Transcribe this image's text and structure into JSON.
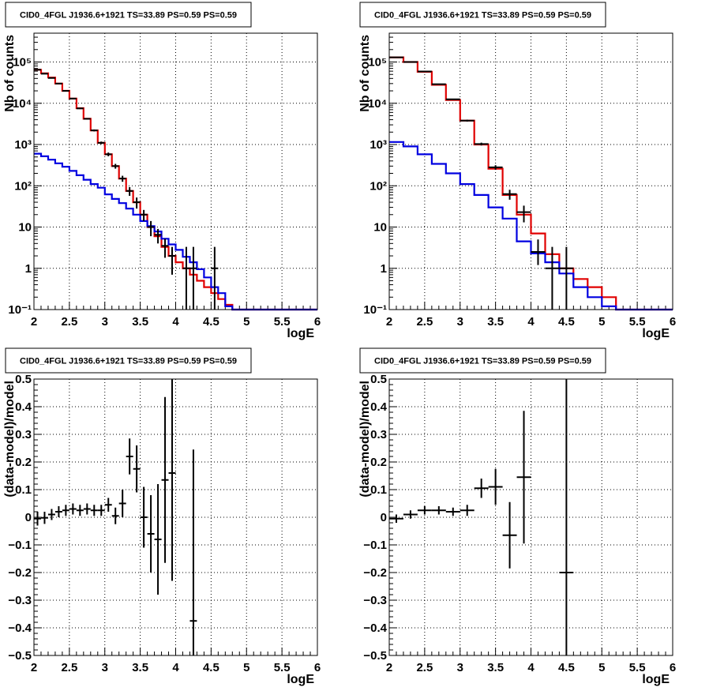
{
  "chart_data": [
    {
      "type": "line",
      "title": "CID0_4FGL J1936.6+1921 TS=33.89 PS=0.59 PS=0.59",
      "xlabel": "logE",
      "ylabel": "Nb of counts",
      "xlim": [
        2,
        6
      ],
      "ylim": [
        0.1,
        500000
      ],
      "log_y": true,
      "grid": true,
      "xticks": [
        2,
        2.5,
        3,
        3.5,
        4,
        4.5,
        5,
        5.5,
        6
      ],
      "xtick_labels": [
        "2",
        "2.5",
        "3",
        "3.5",
        "4",
        "4.5",
        "5",
        "5.5",
        "6"
      ],
      "yticks": [
        0.1,
        1,
        10,
        100,
        1000,
        10000,
        100000
      ],
      "ytick_labels": [
        "10⁻¹",
        "1",
        "10",
        "10²",
        "10³",
        "10⁴",
        "10⁵"
      ],
      "bin_edges": [
        2.0,
        2.1,
        2.2,
        2.3,
        2.4,
        2.5,
        2.6,
        2.7,
        2.8,
        2.9,
        3.0,
        3.1,
        3.2,
        3.3,
        3.4,
        3.5,
        3.6,
        3.7,
        3.8,
        3.9,
        4.0,
        4.1,
        4.2,
        4.3,
        4.4,
        4.5,
        4.6,
        4.7,
        4.8,
        4.9,
        5.0,
        5.1,
        5.2,
        5.3,
        5.4,
        5.5,
        5.6,
        5.7,
        5.8,
        5.9,
        6.0
      ],
      "series": [
        {
          "style": "step",
          "color": "#e00000",
          "values": [
            65000,
            53000,
            42000,
            30000,
            20000,
            13000,
            7600,
            4200,
            2200,
            1100,
            580,
            300,
            150,
            75,
            40,
            20,
            10,
            6,
            3.3,
            2.0,
            1.4,
            1.0,
            0.7,
            0.5,
            0.35,
            0.25,
            0.18,
            0.13,
            0.1,
            0.1,
            0.1,
            0.1,
            0.1,
            0.1,
            0.1,
            0.1,
            0.1,
            0.1,
            0.1,
            0.1
          ]
        },
        {
          "style": "step",
          "color": "#0000e0",
          "values": [
            600,
            520,
            430,
            350,
            290,
            230,
            180,
            140,
            110,
            90,
            62,
            48,
            38,
            28,
            20,
            14,
            10.5,
            7.8,
            5.2,
            3.8,
            2.8,
            1.9,
            1.4,
            0.95,
            0.6,
            0.35,
            0.25,
            0.12,
            0.1,
            0.1,
            0.1,
            0.1,
            0.1,
            0.1,
            0.1,
            0.1,
            0.1,
            0.1,
            0.1,
            0.1
          ]
        },
        {
          "style": "points",
          "color": "#000000",
          "x": [
            2.05,
            2.15,
            2.25,
            2.35,
            2.45,
            2.55,
            2.65,
            2.75,
            2.85,
            2.95,
            3.05,
            3.15,
            3.25,
            3.35,
            3.45,
            3.55,
            3.65,
            3.75,
            3.85,
            3.95,
            4.15,
            4.25,
            4.55
          ],
          "y": [
            65000,
            52000,
            41000,
            30000,
            20000,
            13000,
            7500,
            4200,
            2200,
            1100,
            580,
            300,
            150,
            75,
            40,
            20,
            10,
            6.5,
            3.5,
            2.0,
            1.0,
            1.0,
            1.0
          ],
          "yerr_low": [
            800,
            700,
            600,
            500,
            400,
            300,
            250,
            180,
            120,
            80,
            60,
            40,
            25,
            18,
            12,
            6,
            4,
            2.5,
            1.7,
            1.3,
            0.9,
            0.9,
            0.9
          ],
          "yerr_high": [
            800,
            700,
            600,
            500,
            400,
            300,
            250,
            180,
            120,
            80,
            60,
            40,
            25,
            18,
            12,
            6,
            4,
            2.5,
            1.7,
            1.3,
            2.3,
            2.3,
            2.3
          ]
        }
      ]
    },
    {
      "type": "line",
      "title": "CID0_4FGL J1936.6+1921 TS=33.89 PS=0.59 PS=0.59",
      "xlabel": "logE",
      "ylabel": "Nb of counts",
      "xlim": [
        2,
        6
      ],
      "ylim": [
        0.1,
        500000
      ],
      "log_y": true,
      "grid": true,
      "xticks": [
        2,
        2.5,
        3,
        3.5,
        4,
        4.5,
        5,
        5.5,
        6
      ],
      "xtick_labels": [
        "2",
        "2.5",
        "3",
        "3.5",
        "4",
        "4.5",
        "5",
        "5.5",
        "6"
      ],
      "yticks": [
        0.1,
        1,
        10,
        100,
        1000,
        10000,
        100000
      ],
      "ytick_labels": [
        "10⁻¹",
        "1",
        "10",
        "10²",
        "10³",
        "10⁴",
        "10⁵"
      ],
      "bin_edges": [
        2.0,
        2.2,
        2.4,
        2.6,
        2.8,
        3.0,
        3.2,
        3.4,
        3.6,
        3.8,
        4.0,
        4.2,
        4.4,
        4.6,
        4.8,
        5.0,
        5.2,
        5.4,
        5.6,
        5.8,
        6.0
      ],
      "series": [
        {
          "style": "step",
          "color": "#e00000",
          "values": [
            130000,
            100000,
            58000,
            28000,
            12000,
            3800,
            1000,
            260,
            60,
            20,
            7,
            2.2,
            1.0,
            0.55,
            0.35,
            0.2,
            0.1,
            0.1,
            0.1,
            0.1
          ]
        },
        {
          "style": "step",
          "color": "#0000e0",
          "values": [
            1150,
            900,
            580,
            340,
            200,
            110,
            60,
            30,
            16,
            4.5,
            2.3,
            1.4,
            0.75,
            0.35,
            0.2,
            0.12,
            0.1,
            0.1,
            0.1,
            0.1
          ]
        },
        {
          "style": "points",
          "color": "#000000",
          "x": [
            2.1,
            2.3,
            2.5,
            2.7,
            2.9,
            3.1,
            3.3,
            3.5,
            3.7,
            3.9,
            4.1,
            4.3,
            4.5
          ],
          "y": [
            130000,
            100000,
            59000,
            29000,
            12500,
            3800,
            1030,
            280,
            63,
            23,
            2.5,
            1.0,
            1.0
          ],
          "yerr_low": [
            1000,
            900,
            700,
            500,
            300,
            200,
            80,
            35,
            17,
            10,
            1.3,
            0.9,
            0.9
          ],
          "yerr_high": [
            1000,
            900,
            700,
            500,
            300,
            200,
            80,
            35,
            17,
            10,
            2.5,
            2.3,
            2.3
          ]
        }
      ]
    },
    {
      "type": "scatter",
      "title": "CID0_4FGL J1936.6+1921 TS=33.89 PS=0.59 PS=0.59",
      "xlabel": "logE",
      "ylabel": "(data-model)/model",
      "xlim": [
        2,
        6
      ],
      "ylim": [
        -0.5,
        0.5
      ],
      "grid": true,
      "xticks": [
        2,
        2.5,
        3,
        3.5,
        4,
        4.5,
        5,
        5.5,
        6
      ],
      "xtick_labels": [
        "2",
        "2.5",
        "3",
        "3.5",
        "4",
        "4.5",
        "5",
        "5.5",
        "6"
      ],
      "yticks": [
        -0.5,
        -0.4,
        -0.3,
        -0.2,
        -0.1,
        0,
        0.1,
        0.2,
        0.3,
        0.4,
        0.5
      ],
      "ytick_labels": [
        "−0.5",
        "−0.4",
        "−0.3",
        "−0.2",
        "−0.1",
        "0",
        "0.1",
        "0.2",
        "0.3",
        "0.4",
        "0.5"
      ],
      "series": [
        {
          "style": "points",
          "color": "#000000",
          "xerr": 0.05,
          "x": [
            2.05,
            2.15,
            2.25,
            2.35,
            2.45,
            2.55,
            2.65,
            2.75,
            2.85,
            2.95,
            3.05,
            3.15,
            3.25,
            3.35,
            3.45,
            3.55,
            3.65,
            3.75,
            3.85,
            3.95,
            4.25
          ],
          "y": [
            -0.005,
            -0.002,
            0.01,
            0.02,
            0.025,
            0.03,
            0.025,
            0.03,
            0.025,
            0.025,
            0.045,
            0.005,
            0.05,
            0.22,
            0.175,
            0.0,
            -0.06,
            -0.08,
            0.135,
            0.16,
            -0.375
          ],
          "yerr": [
            0.025,
            0.022,
            0.02,
            0.02,
            0.02,
            0.02,
            0.02,
            0.02,
            0.02,
            0.02,
            0.025,
            0.03,
            0.05,
            0.065,
            0.085,
            0.11,
            0.14,
            0.2,
            0.3,
            0.39,
            0.62
          ]
        }
      ]
    },
    {
      "type": "scatter",
      "title": "CID0_4FGL J1936.6+1921 TS=33.89 PS=0.59 PS=0.59",
      "xlabel": "logE",
      "ylabel": "(data-model)/model",
      "xlim": [
        2,
        6
      ],
      "ylim": [
        -0.5,
        0.5
      ],
      "grid": true,
      "xticks": [
        2,
        2.5,
        3,
        3.5,
        4,
        4.5,
        5,
        5.5,
        6
      ],
      "xtick_labels": [
        "2",
        "2.5",
        "3",
        "3.5",
        "4",
        "4.5",
        "5",
        "5.5",
        "6"
      ],
      "yticks": [
        -0.5,
        -0.4,
        -0.3,
        -0.2,
        -0.1,
        0,
        0.1,
        0.2,
        0.3,
        0.4,
        0.5
      ],
      "ytick_labels": [
        "−0.5",
        "−0.4",
        "−0.3",
        "−0.2",
        "−0.1",
        "0",
        "0.1",
        "0.2",
        "0.3",
        "0.4",
        "0.5"
      ],
      "series": [
        {
          "style": "points",
          "color": "#000000",
          "xerr": 0.1,
          "x": [
            2.1,
            2.3,
            2.5,
            2.7,
            2.9,
            3.1,
            3.3,
            3.5,
            3.7,
            3.9,
            4.5
          ],
          "y": [
            -0.005,
            0.01,
            0.025,
            0.025,
            0.02,
            0.025,
            0.105,
            0.11,
            -0.065,
            0.145,
            -0.2
          ],
          "yerr": [
            0.015,
            0.015,
            0.015,
            0.015,
            0.015,
            0.02,
            0.035,
            0.065,
            0.12,
            0.24,
            0.7
          ]
        }
      ]
    }
  ]
}
